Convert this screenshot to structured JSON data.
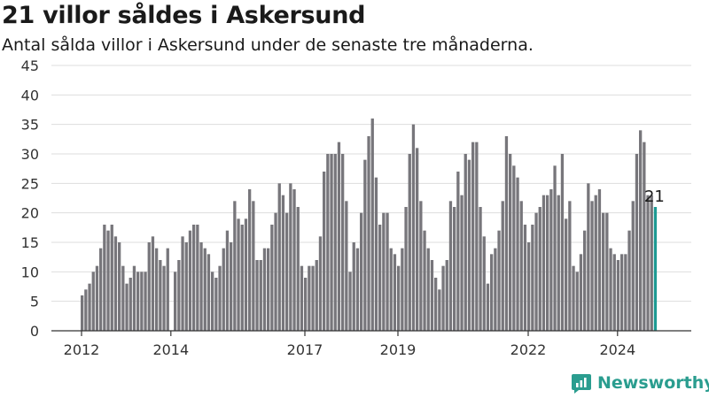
{
  "header": {
    "title": "21 villor såldes i Askersund",
    "subtitle": "Antal sålda villor i Askersund under de senaste tre månaderna."
  },
  "brand": {
    "name": "Newsworthy"
  },
  "colors": {
    "bar": "#77767b",
    "highlight": "#1d9a93",
    "grid": "#dddddd",
    "axis": "#333333",
    "brand": "#2a9d8f"
  },
  "chart_data": {
    "type": "bar",
    "title": "21 villor såldes i Askersund",
    "subtitle": "Antal sålda villor i Askersund under de senaste tre månaderna.",
    "xlabel": "",
    "ylabel": "",
    "ylim": [
      0,
      45
    ],
    "yticks": [
      0,
      5,
      10,
      15,
      20,
      25,
      30,
      35,
      40,
      45
    ],
    "xticks": [
      "2012",
      "2014",
      "2017",
      "2019",
      "2022",
      "2024"
    ],
    "grid": true,
    "highlight_label": "21",
    "series": [
      {
        "values": [
          6,
          7,
          8,
          10,
          11,
          14,
          18,
          17,
          18,
          16,
          15,
          11,
          8,
          9,
          11,
          10,
          10,
          10,
          15,
          16,
          14,
          12,
          11,
          14,
          null,
          10,
          12,
          16,
          15,
          17,
          18,
          18,
          15,
          14,
          13,
          10,
          9,
          11,
          14,
          17,
          15,
          22,
          19,
          18,
          19,
          24,
          22,
          12,
          12,
          14,
          14,
          18,
          20,
          25,
          23,
          20,
          25,
          24,
          21,
          11,
          9,
          11,
          11,
          12,
          16,
          27,
          30,
          30,
          30,
          32,
          30,
          22,
          10,
          15,
          14,
          20,
          29,
          33,
          36,
          26,
          18,
          20,
          20,
          14,
          13,
          11,
          14,
          21,
          30,
          35,
          31,
          22,
          17,
          14,
          12,
          9,
          7,
          11,
          12,
          22,
          21,
          27,
          23,
          30,
          29,
          32,
          32,
          21,
          16,
          8,
          13,
          14,
          17,
          22,
          33,
          30,
          28,
          26,
          22,
          18,
          15,
          18,
          20,
          21,
          23,
          23,
          24,
          28,
          23,
          30,
          19,
          22,
          11,
          10,
          13,
          17,
          25,
          22,
          23,
          24,
          20,
          20,
          14,
          13,
          12,
          13,
          13,
          17,
          22,
          30,
          34,
          32,
          23,
          23,
          21
        ]
      }
    ]
  }
}
